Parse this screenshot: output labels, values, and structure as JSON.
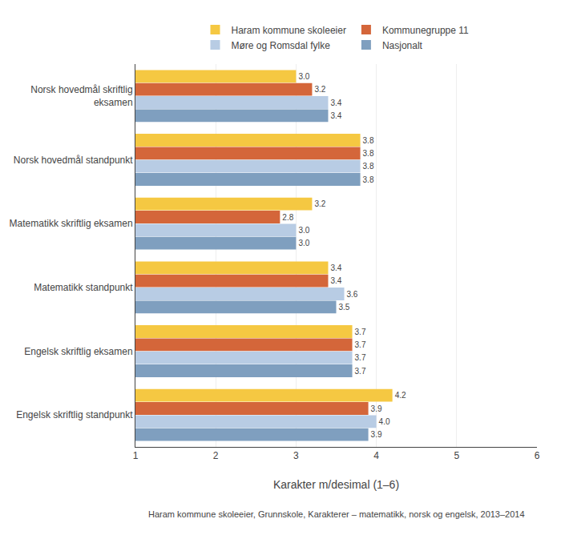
{
  "chart_data": {
    "type": "bar",
    "orientation": "horizontal",
    "categories": [
      "Norsk hovedmål skriftlig\neksamen",
      "Norsk hovedmål standpunkt",
      "Matematikk skriftlig eksamen",
      "Matematikk standpunkt",
      "Engelsk skriftlig eksamen",
      "Engelsk skriftlig standpunkt"
    ],
    "series": [
      {
        "name": "Haram kommune skoleeier",
        "color": "#F5C842",
        "values": [
          3.0,
          3.8,
          3.2,
          3.4,
          3.7,
          4.2
        ],
        "value_labels": [
          "3.0",
          "3.8",
          "3.2",
          "3.4",
          "3.7",
          "4.2"
        ]
      },
      {
        "name": "Kommunegruppe 11",
        "color": "#D4663A",
        "values": [
          3.2,
          3.8,
          2.8,
          3.4,
          3.7,
          3.9
        ],
        "value_labels": [
          "3.2",
          "3.8",
          "2.8",
          "3.4",
          "3.7",
          "3.9"
        ]
      },
      {
        "name": "Møre og Romsdal fylke",
        "color": "#B8CCE4",
        "values": [
          3.4,
          3.8,
          3.0,
          3.6,
          3.7,
          4.0
        ],
        "value_labels": [
          "3.4",
          "3.8",
          "3.0",
          "3.6",
          "3.7",
          "4.0"
        ]
      },
      {
        "name": "Nasjonalt",
        "color": "#7F9FBF",
        "values": [
          3.4,
          3.8,
          3.0,
          3.5,
          3.7,
          3.9
        ],
        "value_labels": [
          "3.4",
          "3.8",
          "3.0",
          "3.5",
          "3.7",
          "3.9"
        ]
      }
    ],
    "xlabel": "Karakter m/desimal (1–6)",
    "xlim": [
      1,
      6
    ],
    "xticks": [
      1,
      2,
      3,
      4,
      5,
      6
    ],
    "annotations": [
      "Haram kommune skoleeier, Grunnskole, Karakterer – matematikk, norsk og engelsk, 2013–2014"
    ],
    "data_labels": true,
    "grid": true,
    "legend": "top"
  }
}
